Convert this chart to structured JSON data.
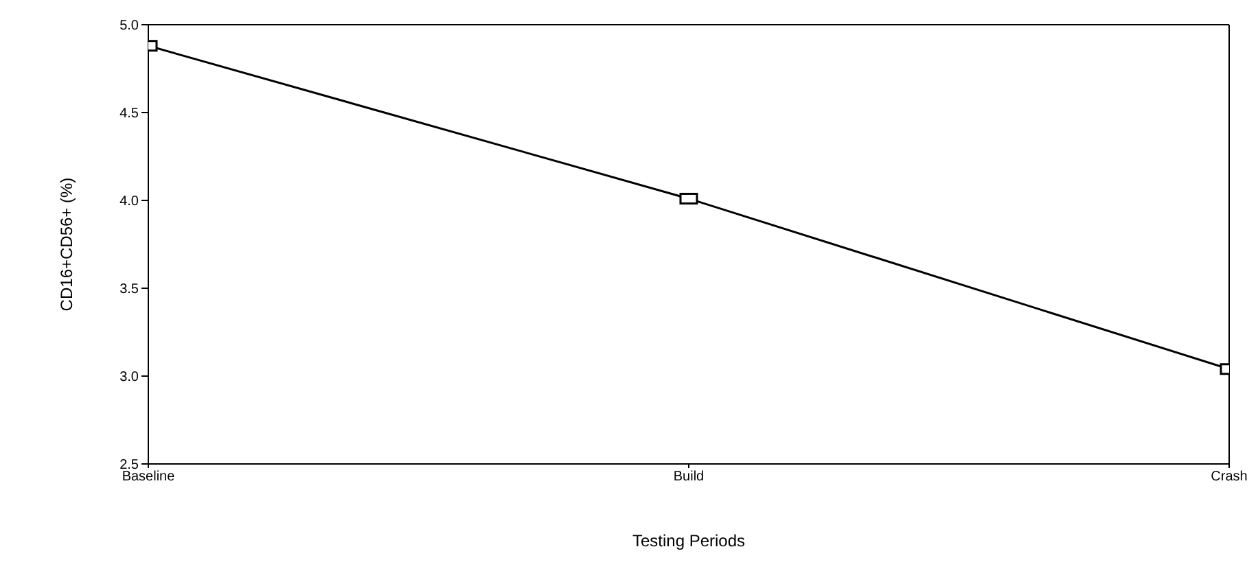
{
  "chart_data": {
    "type": "line",
    "xlabel": "Testing Periods",
    "ylabel": "CD16+CD56+ (%)",
    "categories": [
      "Baseline",
      "Build",
      "Crash"
    ],
    "series": [
      {
        "color": "#000000",
        "values": [
          4.88,
          4.01,
          3.04
        ]
      }
    ],
    "ylim": [
      2.5,
      5.0
    ],
    "yticks": [
      {
        "value": 2.5,
        "label": "2.5"
      },
      {
        "value": 3.0,
        "label": "3.0"
      },
      {
        "value": 3.5,
        "label": "3.5"
      },
      {
        "value": 4.0,
        "label": "4.0"
      },
      {
        "value": 4.5,
        "label": "4.5"
      },
      {
        "value": 5.0,
        "label": "5.0"
      }
    ],
    "grid": false,
    "legend": false,
    "marker": "square",
    "line_style": "solid"
  }
}
